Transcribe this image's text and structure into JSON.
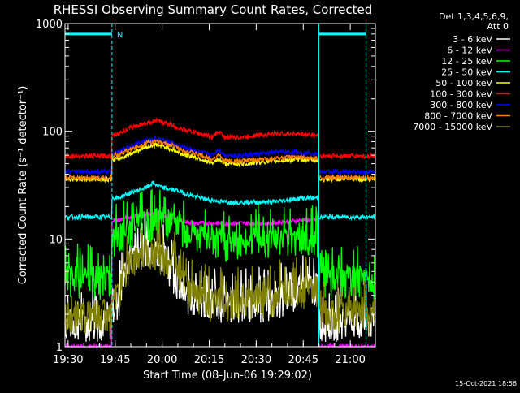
{
  "chart_data": {
    "type": "line",
    "title": "RHESSI Observing Summary Count Rates, Corrected",
    "xlabel": "Start Time (08-Jun-06 19:29:02)",
    "ylabel": "Corrected Count Rate (s⁻¹ detector⁻¹)",
    "x_range_min": [
      1169,
      1268
    ],
    "ylim": [
      1,
      1000
    ],
    "y_scale": "log",
    "x_ticks": [
      {
        "min": 1170,
        "label": "19:30"
      },
      {
        "min": 1185,
        "label": "19:45"
      },
      {
        "min": 1200,
        "label": "20:00"
      },
      {
        "min": 1215,
        "label": "20:15"
      },
      {
        "min": 1230,
        "label": "20:30"
      },
      {
        "min": 1245,
        "label": "20:45"
      },
      {
        "min": 1260,
        "label": "21:00"
      }
    ],
    "y_ticks": [
      {
        "value": 1,
        "label": "1"
      },
      {
        "value": 10,
        "label": "10"
      },
      {
        "value": 100,
        "label": "100"
      },
      {
        "value": 1000,
        "label": "1000"
      }
    ],
    "legend_header": [
      "Det 1,3,4,5,6,9,",
      "Att 0"
    ],
    "legend_position": "right",
    "timestamp": "15-Oct-2021 18:56",
    "marker_label": "N",
    "marker_bar_value": 800,
    "markers": [
      {
        "min": 1169,
        "style": "solid"
      },
      {
        "min": 1184,
        "style": "dashed"
      },
      {
        "min": 1250,
        "style": "solid"
      },
      {
        "min": 1265,
        "style": "dashed"
      }
    ],
    "night_bars": [
      [
        1169,
        1184
      ],
      [
        1250,
        1265
      ]
    ],
    "day_window": [
      1184,
      1250
    ],
    "series": [
      {
        "name": "3 - 6 keV",
        "color": "#ffffff",
        "night": 1.7,
        "points": [
          [
            1186,
            2.5
          ],
          [
            1190,
            7
          ],
          [
            1195,
            8.5
          ],
          [
            1200,
            7.5
          ],
          [
            1203,
            5
          ],
          [
            1207,
            3
          ],
          [
            1215,
            2.5
          ],
          [
            1225,
            2.5
          ],
          [
            1235,
            2.6
          ],
          [
            1240,
            3
          ],
          [
            1245,
            3.5
          ],
          [
            1249,
            3.6
          ]
        ]
      },
      {
        "name": "6 - 12 keV",
        "color": "#ff00ff",
        "night": 1.0,
        "points": [
          [
            1186,
            15
          ],
          [
            1190,
            16
          ],
          [
            1195,
            17
          ],
          [
            1200,
            17
          ],
          [
            1205,
            15
          ],
          [
            1210,
            14
          ],
          [
            1215,
            14
          ],
          [
            1220,
            14
          ],
          [
            1225,
            14
          ],
          [
            1230,
            14
          ],
          [
            1235,
            14
          ],
          [
            1240,
            14.5
          ],
          [
            1245,
            15
          ],
          [
            1249,
            15
          ]
        ]
      },
      {
        "name": "12 - 25 keV",
        "color": "#00ff00",
        "night": 4.2,
        "points": [
          [
            1186,
            10
          ],
          [
            1190,
            12
          ],
          [
            1195,
            14
          ],
          [
            1200,
            15
          ],
          [
            1205,
            13
          ],
          [
            1210,
            11
          ],
          [
            1215,
            10
          ],
          [
            1220,
            9
          ],
          [
            1225,
            9
          ],
          [
            1230,
            10
          ],
          [
            1235,
            10
          ],
          [
            1240,
            10
          ],
          [
            1245,
            10
          ],
          [
            1249,
            9.5
          ]
        ]
      },
      {
        "name": "25 - 50 keV",
        "color": "#00ffff",
        "night": 16,
        "points": [
          [
            1186,
            24
          ],
          [
            1190,
            27
          ],
          [
            1195,
            30
          ],
          [
            1197,
            33
          ],
          [
            1200,
            30
          ],
          [
            1205,
            28
          ],
          [
            1210,
            25
          ],
          [
            1215,
            23
          ],
          [
            1220,
            22
          ],
          [
            1225,
            22
          ],
          [
            1230,
            22
          ],
          [
            1235,
            22
          ],
          [
            1240,
            23
          ],
          [
            1245,
            24
          ],
          [
            1249,
            24
          ]
        ]
      },
      {
        "name": "50 - 100 keV",
        "color": "#ffff00",
        "night": 36,
        "points": [
          [
            1186,
            55
          ],
          [
            1190,
            62
          ],
          [
            1195,
            72
          ],
          [
            1198,
            75
          ],
          [
            1202,
            70
          ],
          [
            1206,
            62
          ],
          [
            1212,
            56
          ],
          [
            1216,
            50
          ],
          [
            1218,
            55
          ],
          [
            1220,
            50
          ],
          [
            1226,
            50
          ],
          [
            1232,
            52
          ],
          [
            1240,
            54
          ],
          [
            1245,
            55
          ],
          [
            1249,
            54
          ]
        ]
      },
      {
        "name": "100 - 300 keV",
        "color": "#ff0000",
        "night": 59,
        "points": [
          [
            1186,
            95
          ],
          [
            1190,
            108
          ],
          [
            1195,
            120
          ],
          [
            1198,
            125
          ],
          [
            1202,
            118
          ],
          [
            1206,
            105
          ],
          [
            1212,
            95
          ],
          [
            1216,
            88
          ],
          [
            1218,
            100
          ],
          [
            1220,
            88
          ],
          [
            1226,
            88
          ],
          [
            1230,
            92
          ],
          [
            1236,
            95
          ],
          [
            1242,
            95
          ],
          [
            1249,
            92
          ]
        ]
      },
      {
        "name": "300 - 800 keV",
        "color": "#0000ff",
        "night": 42,
        "points": [
          [
            1186,
            63
          ],
          [
            1190,
            73
          ],
          [
            1195,
            82
          ],
          [
            1198,
            85
          ],
          [
            1202,
            80
          ],
          [
            1206,
            72
          ],
          [
            1212,
            64
          ],
          [
            1216,
            60
          ],
          [
            1218,
            68
          ],
          [
            1220,
            60
          ],
          [
            1226,
            60
          ],
          [
            1232,
            62
          ],
          [
            1238,
            64
          ],
          [
            1244,
            64
          ],
          [
            1249,
            62
          ]
        ]
      },
      {
        "name": "800 - 7000 keV",
        "color": "#ff8000",
        "night": 37,
        "points": [
          [
            1186,
            60
          ],
          [
            1190,
            68
          ],
          [
            1195,
            78
          ],
          [
            1198,
            80
          ],
          [
            1202,
            76
          ],
          [
            1206,
            68
          ],
          [
            1212,
            60
          ],
          [
            1216,
            55
          ],
          [
            1218,
            60
          ],
          [
            1220,
            53
          ],
          [
            1226,
            53
          ],
          [
            1232,
            55
          ],
          [
            1238,
            57
          ],
          [
            1244,
            57
          ],
          [
            1249,
            56
          ]
        ]
      },
      {
        "name": "7000 - 15000 keV",
        "color": "#808000",
        "night": 2.0,
        "points": [
          [
            1186,
            3
          ],
          [
            1190,
            6
          ],
          [
            1195,
            7.5
          ],
          [
            1200,
            7
          ],
          [
            1205,
            5
          ],
          [
            1208,
            3.5
          ],
          [
            1215,
            2.6
          ],
          [
            1225,
            2.7
          ],
          [
            1235,
            2.8
          ],
          [
            1240,
            3.2
          ],
          [
            1245,
            3.4
          ],
          [
            1249,
            3.4
          ]
        ]
      }
    ]
  }
}
